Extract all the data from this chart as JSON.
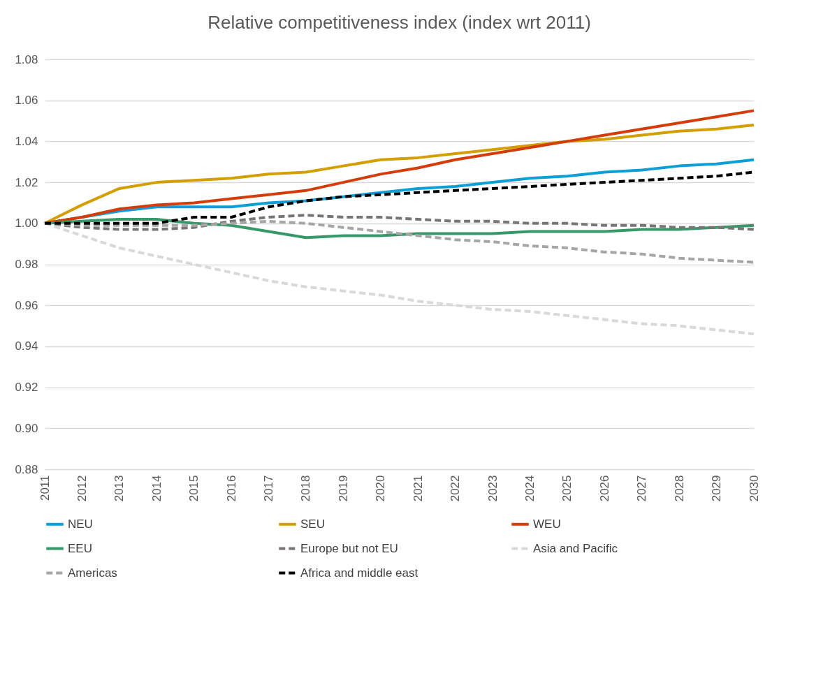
{
  "chart_data": {
    "type": "line",
    "title": "Relative competitiveness index (index wrt 2011)",
    "categories": [
      "2011",
      "2012",
      "2013",
      "2014",
      "2015",
      "2016",
      "2017",
      "2018",
      "2019",
      "2020",
      "2021",
      "2022",
      "2023",
      "2024",
      "2025",
      "2026",
      "2027",
      "2028",
      "2029",
      "2030"
    ],
    "ylim": [
      0.88,
      1.08
    ],
    "yticks": [
      {
        "value": 0.88,
        "label": "0.88"
      },
      {
        "value": 0.9,
        "label": "0.90"
      },
      {
        "value": 0.92,
        "label": "0.92"
      },
      {
        "value": 0.94,
        "label": "0.94"
      },
      {
        "value": 0.96,
        "label": "0.96"
      },
      {
        "value": 0.98,
        "label": "0.98"
      },
      {
        "value": 1,
        "label": "1.00"
      },
      {
        "value": 1.02,
        "label": "1.02"
      },
      {
        "value": 1.04,
        "label": "1.04"
      },
      {
        "value": 1.06,
        "label": "1.06"
      },
      {
        "value": 1.08,
        "label": "1.08"
      }
    ],
    "grid": "y",
    "legend": "bottom",
    "marker": "none",
    "series": [
      {
        "name": "NEU",
        "color": "#0e9fd6",
        "line_style": "solid",
        "values": [
          1.0,
          1.003,
          1.006,
          1.008,
          1.008,
          1.008,
          1.01,
          1.011,
          1.013,
          1.015,
          1.017,
          1.018,
          1.02,
          1.022,
          1.023,
          1.025,
          1.026,
          1.028,
          1.029,
          1.031
        ]
      },
      {
        "name": "SEU",
        "color": "#d49f04",
        "line_style": "solid",
        "values": [
          1.0,
          1.009,
          1.017,
          1.02,
          1.021,
          1.022,
          1.024,
          1.025,
          1.028,
          1.031,
          1.032,
          1.034,
          1.036,
          1.038,
          1.04,
          1.041,
          1.043,
          1.045,
          1.046,
          1.048
        ]
      },
      {
        "name": "WEU",
        "color": "#d43d0a",
        "line_style": "solid",
        "values": [
          1.0,
          1.003,
          1.007,
          1.009,
          1.01,
          1.012,
          1.014,
          1.016,
          1.02,
          1.024,
          1.027,
          1.031,
          1.034,
          1.037,
          1.04,
          1.043,
          1.046,
          1.049,
          1.052,
          1.055
        ]
      },
      {
        "name": "EEU",
        "color": "#36996a",
        "line_style": "solid",
        "values": [
          1.0,
          1.001,
          1.002,
          1.002,
          1.0,
          0.999,
          0.996,
          0.993,
          0.994,
          0.994,
          0.995,
          0.995,
          0.995,
          0.996,
          0.996,
          0.996,
          0.997,
          0.997,
          0.998,
          0.999
        ]
      },
      {
        "name": "Europe but not EU",
        "color": "#7a7575",
        "line_style": "dashed",
        "values": [
          1.0,
          0.998,
          0.997,
          0.997,
          0.998,
          1.001,
          1.003,
          1.004,
          1.003,
          1.003,
          1.002,
          1.001,
          1.001,
          1.0,
          1.0,
          0.999,
          0.999,
          0.998,
          0.998,
          0.997
        ]
      },
      {
        "name": "Asia and Pacific",
        "color": "#d9d9d9",
        "line_style": "dashed",
        "values": [
          1.0,
          0.994,
          0.988,
          0.984,
          0.98,
          0.976,
          0.972,
          0.969,
          0.967,
          0.965,
          0.962,
          0.96,
          0.958,
          0.957,
          0.955,
          0.953,
          0.951,
          0.95,
          0.948,
          0.946
        ]
      },
      {
        "name": "Americas",
        "color": "#a6a6a6",
        "line_style": "dashed",
        "values": [
          1.0,
          0.999,
          0.999,
          0.999,
          0.999,
          1.0,
          1.001,
          1.0,
          0.998,
          0.996,
          0.994,
          0.992,
          0.991,
          0.989,
          0.988,
          0.986,
          0.985,
          0.983,
          0.982,
          0.981
        ]
      },
      {
        "name": "Africa and middle east",
        "color": "#000000",
        "line_style": "dashed",
        "values": [
          1.0,
          1.0,
          1.0,
          1.0,
          1.003,
          1.003,
          1.008,
          1.011,
          1.013,
          1.014,
          1.015,
          1.016,
          1.017,
          1.018,
          1.019,
          1.02,
          1.021,
          1.022,
          1.023,
          1.025
        ]
      }
    ]
  }
}
